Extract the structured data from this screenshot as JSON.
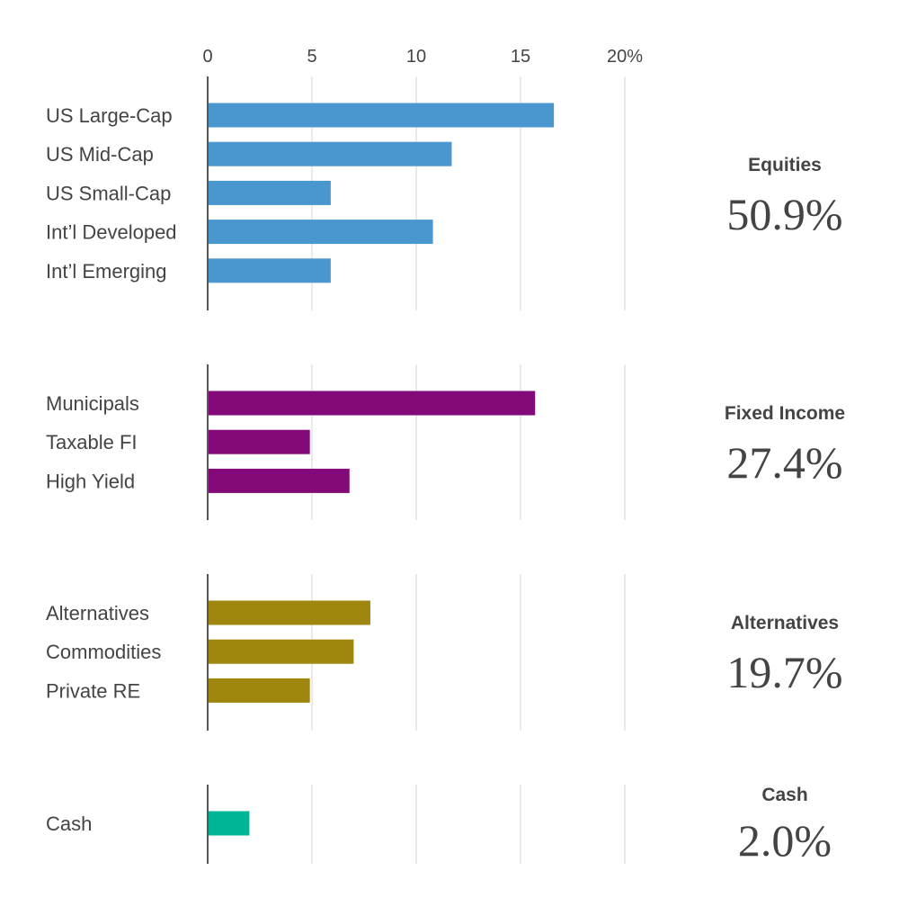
{
  "chart_data": {
    "type": "bar",
    "orientation": "horizontal",
    "x_axis": {
      "ticks": [
        0,
        5,
        10,
        15,
        20
      ],
      "tick_labels": [
        "0",
        "5",
        "10",
        "15",
        "20%"
      ],
      "range": [
        0,
        20
      ],
      "grid": true
    },
    "groups": [
      {
        "name": "Equities",
        "total": "50.9%",
        "color": "#4a96cf",
        "categories": [
          "US Large-Cap",
          "US Mid-Cap",
          "US Small-Cap",
          "Int’l Developed",
          "Int’l Emerging"
        ],
        "values": [
          16.6,
          11.7,
          5.9,
          10.8,
          5.9
        ]
      },
      {
        "name": "Fixed Income",
        "total": "27.4%",
        "color": "#830a78",
        "categories": [
          "Municipals",
          "Taxable FI",
          "High Yield"
        ],
        "values": [
          15.7,
          4.9,
          6.8
        ]
      },
      {
        "name": "Alternatives",
        "total": "19.7%",
        "color": "#9e860f",
        "categories": [
          "Alternatives",
          "Commodities",
          "Private RE"
        ],
        "values": [
          7.8,
          7.0,
          4.9
        ]
      },
      {
        "name": "Cash",
        "total": "2.0%",
        "color": "#00b496",
        "categories": [
          "Cash"
        ],
        "values": [
          2.0
        ]
      }
    ]
  }
}
